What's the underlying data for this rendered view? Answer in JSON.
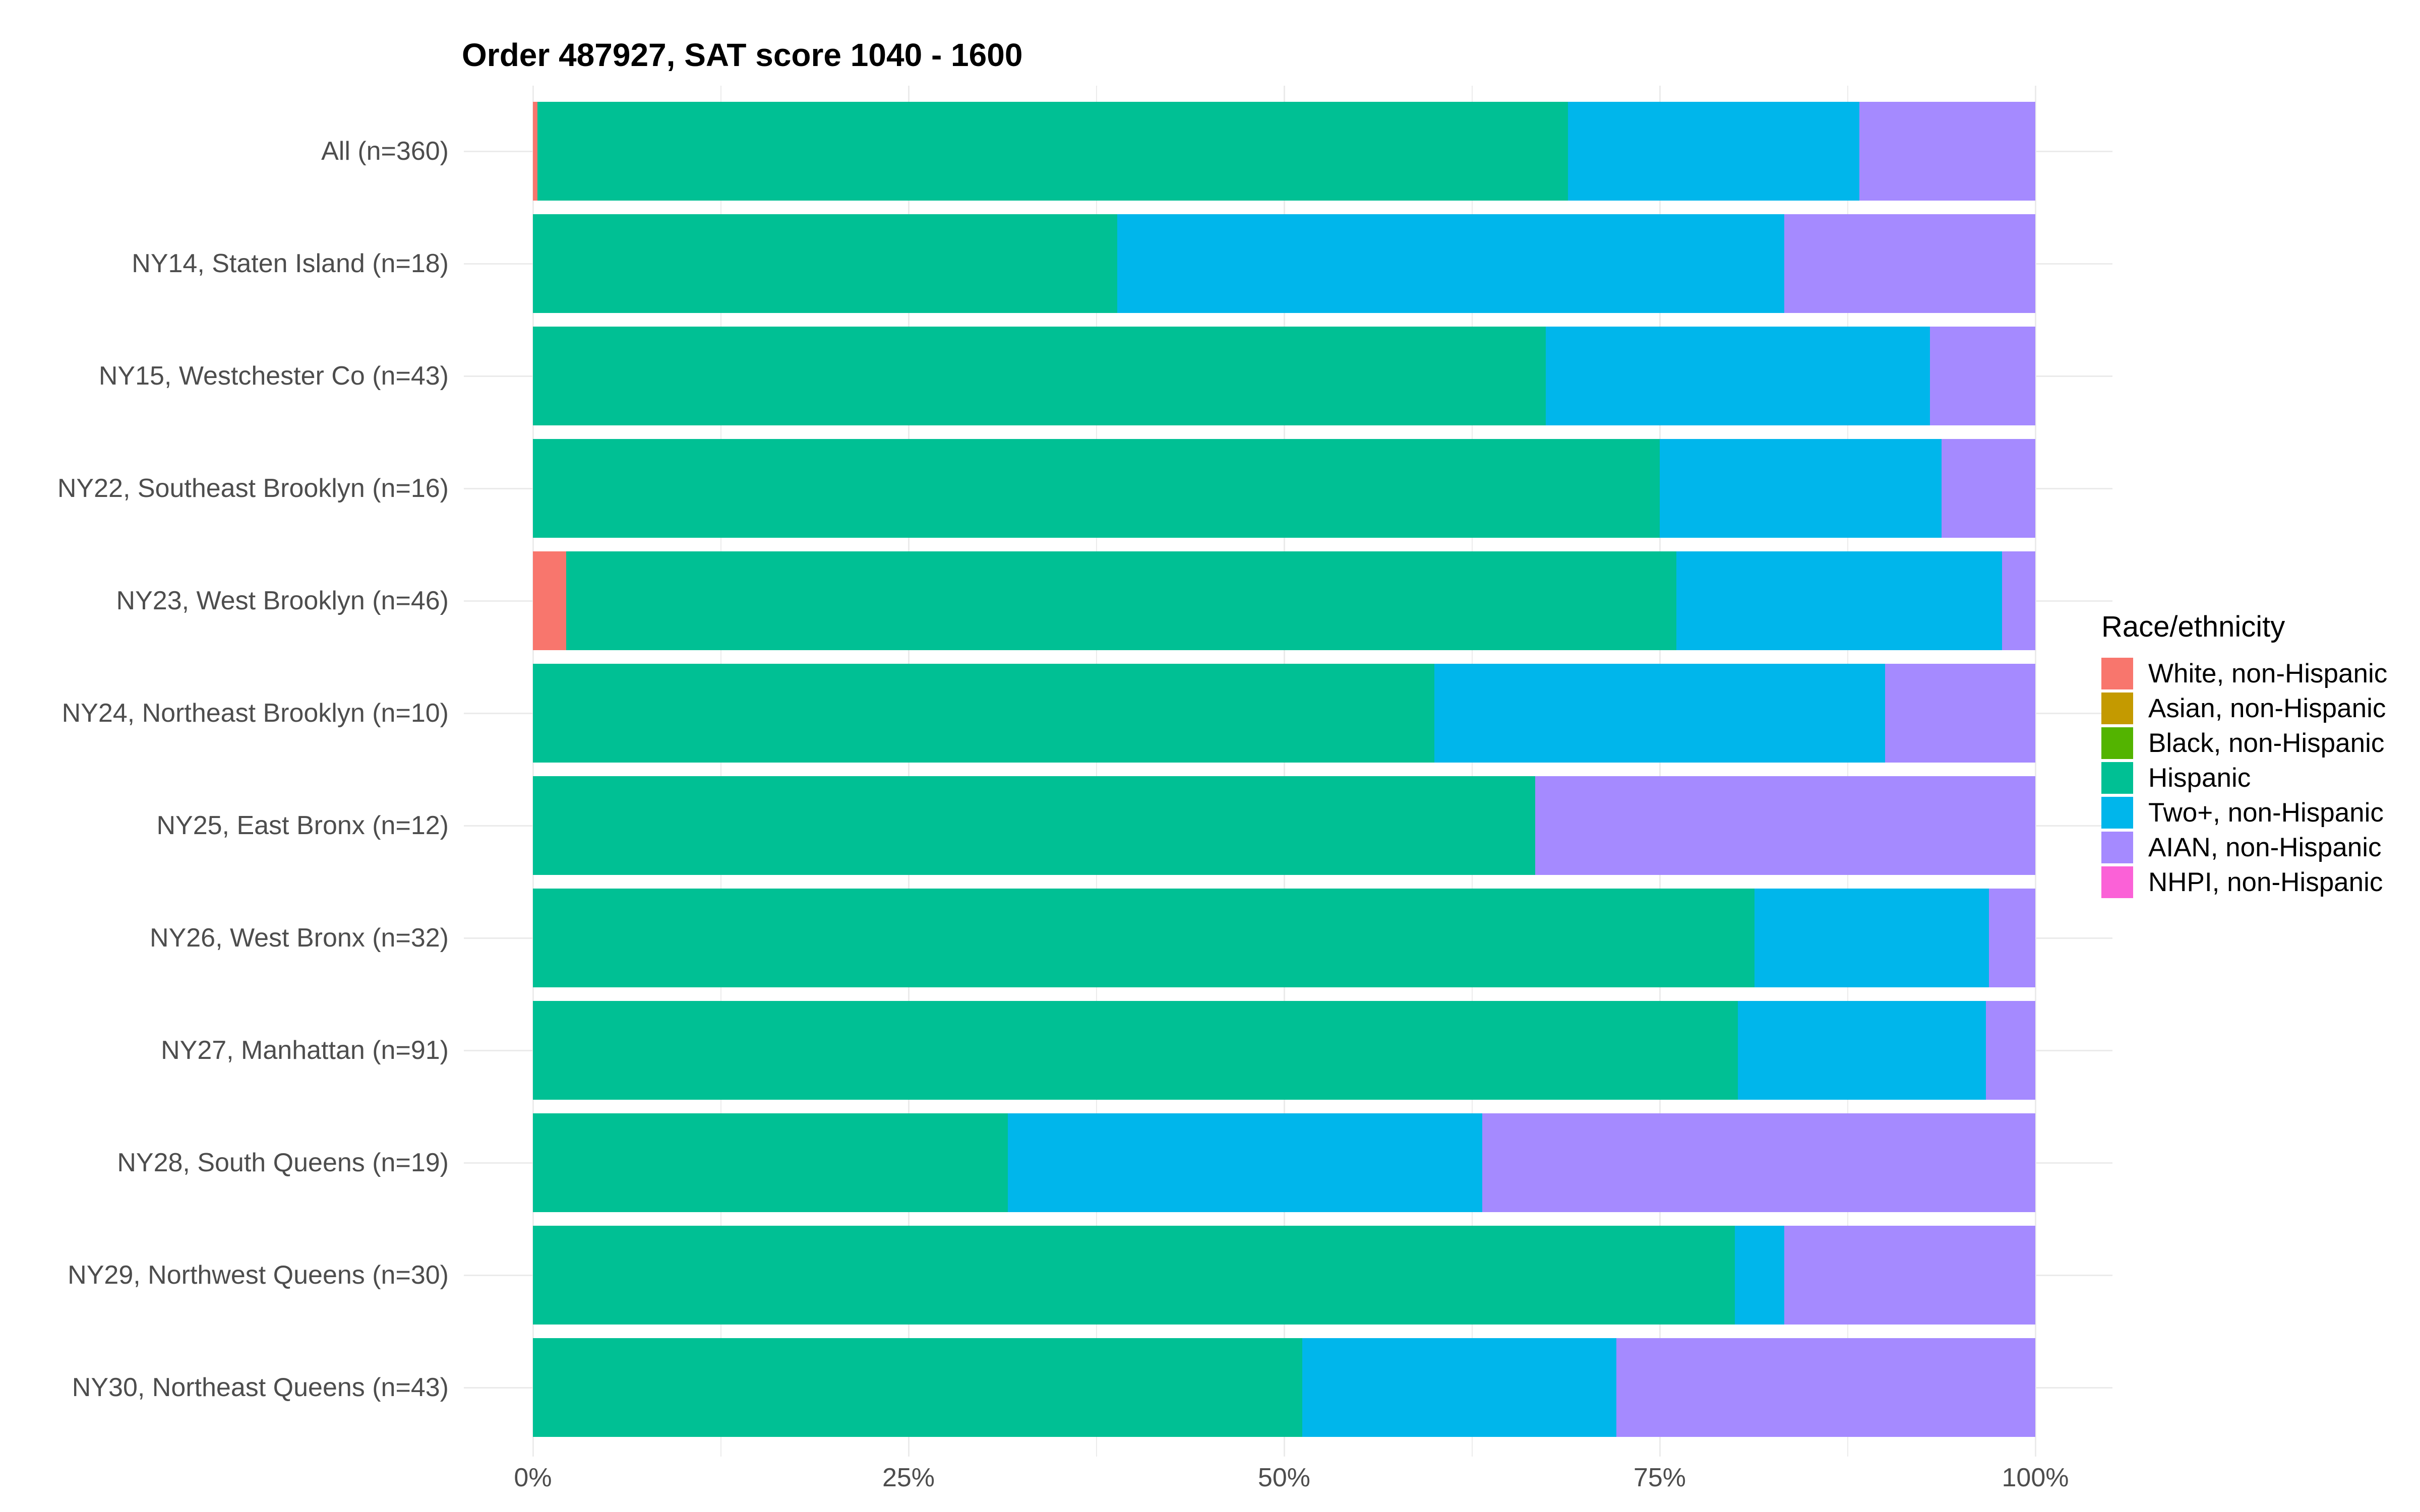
{
  "title": "Order 487927, SAT score 1040 - 1600",
  "colors": {
    "background": "#FFFFFF",
    "grid": "#EBEBEB",
    "axis_text": "#4D4D4D",
    "text": "#000000"
  },
  "chart_data": {
    "type": "bar",
    "subtype": "horizontal_stacked_percent",
    "title": "Order 487927, SAT score 1040 - 1600",
    "xlabel": "",
    "ylabel": "",
    "xlim": [
      0,
      100
    ],
    "grid": "on",
    "x_major_ticks": [
      0,
      25,
      50,
      75,
      100
    ],
    "x_tick_labels": [
      "0%",
      "25%",
      "50%",
      "75%",
      "100%"
    ],
    "x_minor_gridlines": [
      12.5,
      37.5,
      62.5,
      87.5
    ],
    "legend": {
      "title": "Race/ethnicity",
      "position": "right"
    },
    "categories": [
      "All (n=360)",
      "NY14, Staten Island (n=18)",
      "NY15, Westchester Co (n=43)",
      "NY22, Southeast Brooklyn (n=16)",
      "NY23, West Brooklyn (n=46)",
      "NY24, Northeast Brooklyn (n=10)",
      "NY25, East Bronx (n=12)",
      "NY26, West Bronx (n=32)",
      "NY27, Manhattan (n=91)",
      "NY28, South Queens (n=19)",
      "NY29, Northwest Queens (n=30)",
      "NY30, Northeast Queens (n=43)"
    ],
    "series": [
      {
        "name": "White, non-Hispanic",
        "color": "#F8766D",
        "values": [
          0.3,
          0,
          0,
          0,
          2.2,
          0,
          0,
          0,
          0,
          0,
          0,
          0
        ]
      },
      {
        "name": "Asian, non-Hispanic",
        "color": "#C49A00",
        "values": [
          0,
          0,
          0,
          0,
          0,
          0,
          0,
          0,
          0,
          0,
          0,
          0
        ]
      },
      {
        "name": "Black, non-Hispanic",
        "color": "#53B400",
        "values": [
          0,
          0,
          0,
          0,
          0,
          0,
          0,
          0,
          0,
          0,
          0,
          0
        ]
      },
      {
        "name": "Hispanic",
        "color": "#00C094",
        "values": [
          68.6,
          38.9,
          67.4,
          75.0,
          73.9,
          60.0,
          66.7,
          81.3,
          80.2,
          31.6,
          80.0,
          51.2
        ]
      },
      {
        "name": "Two+, non-Hispanic",
        "color": "#00B6EB",
        "values": [
          19.4,
          44.4,
          25.6,
          18.75,
          21.7,
          30.0,
          0,
          15.6,
          16.5,
          31.6,
          3.3,
          20.9
        ]
      },
      {
        "name": "AIAN, non-Hispanic",
        "color": "#A58AFF",
        "values": [
          11.7,
          16.7,
          7.0,
          6.25,
          2.2,
          10.0,
          33.3,
          3.1,
          3.3,
          36.8,
          16.7,
          27.9
        ]
      },
      {
        "name": "NHPI, non-Hispanic",
        "color": "#FB61D7",
        "values": [
          0,
          0,
          0,
          0,
          0,
          0,
          0,
          0,
          0,
          0,
          0,
          0
        ]
      }
    ]
  }
}
